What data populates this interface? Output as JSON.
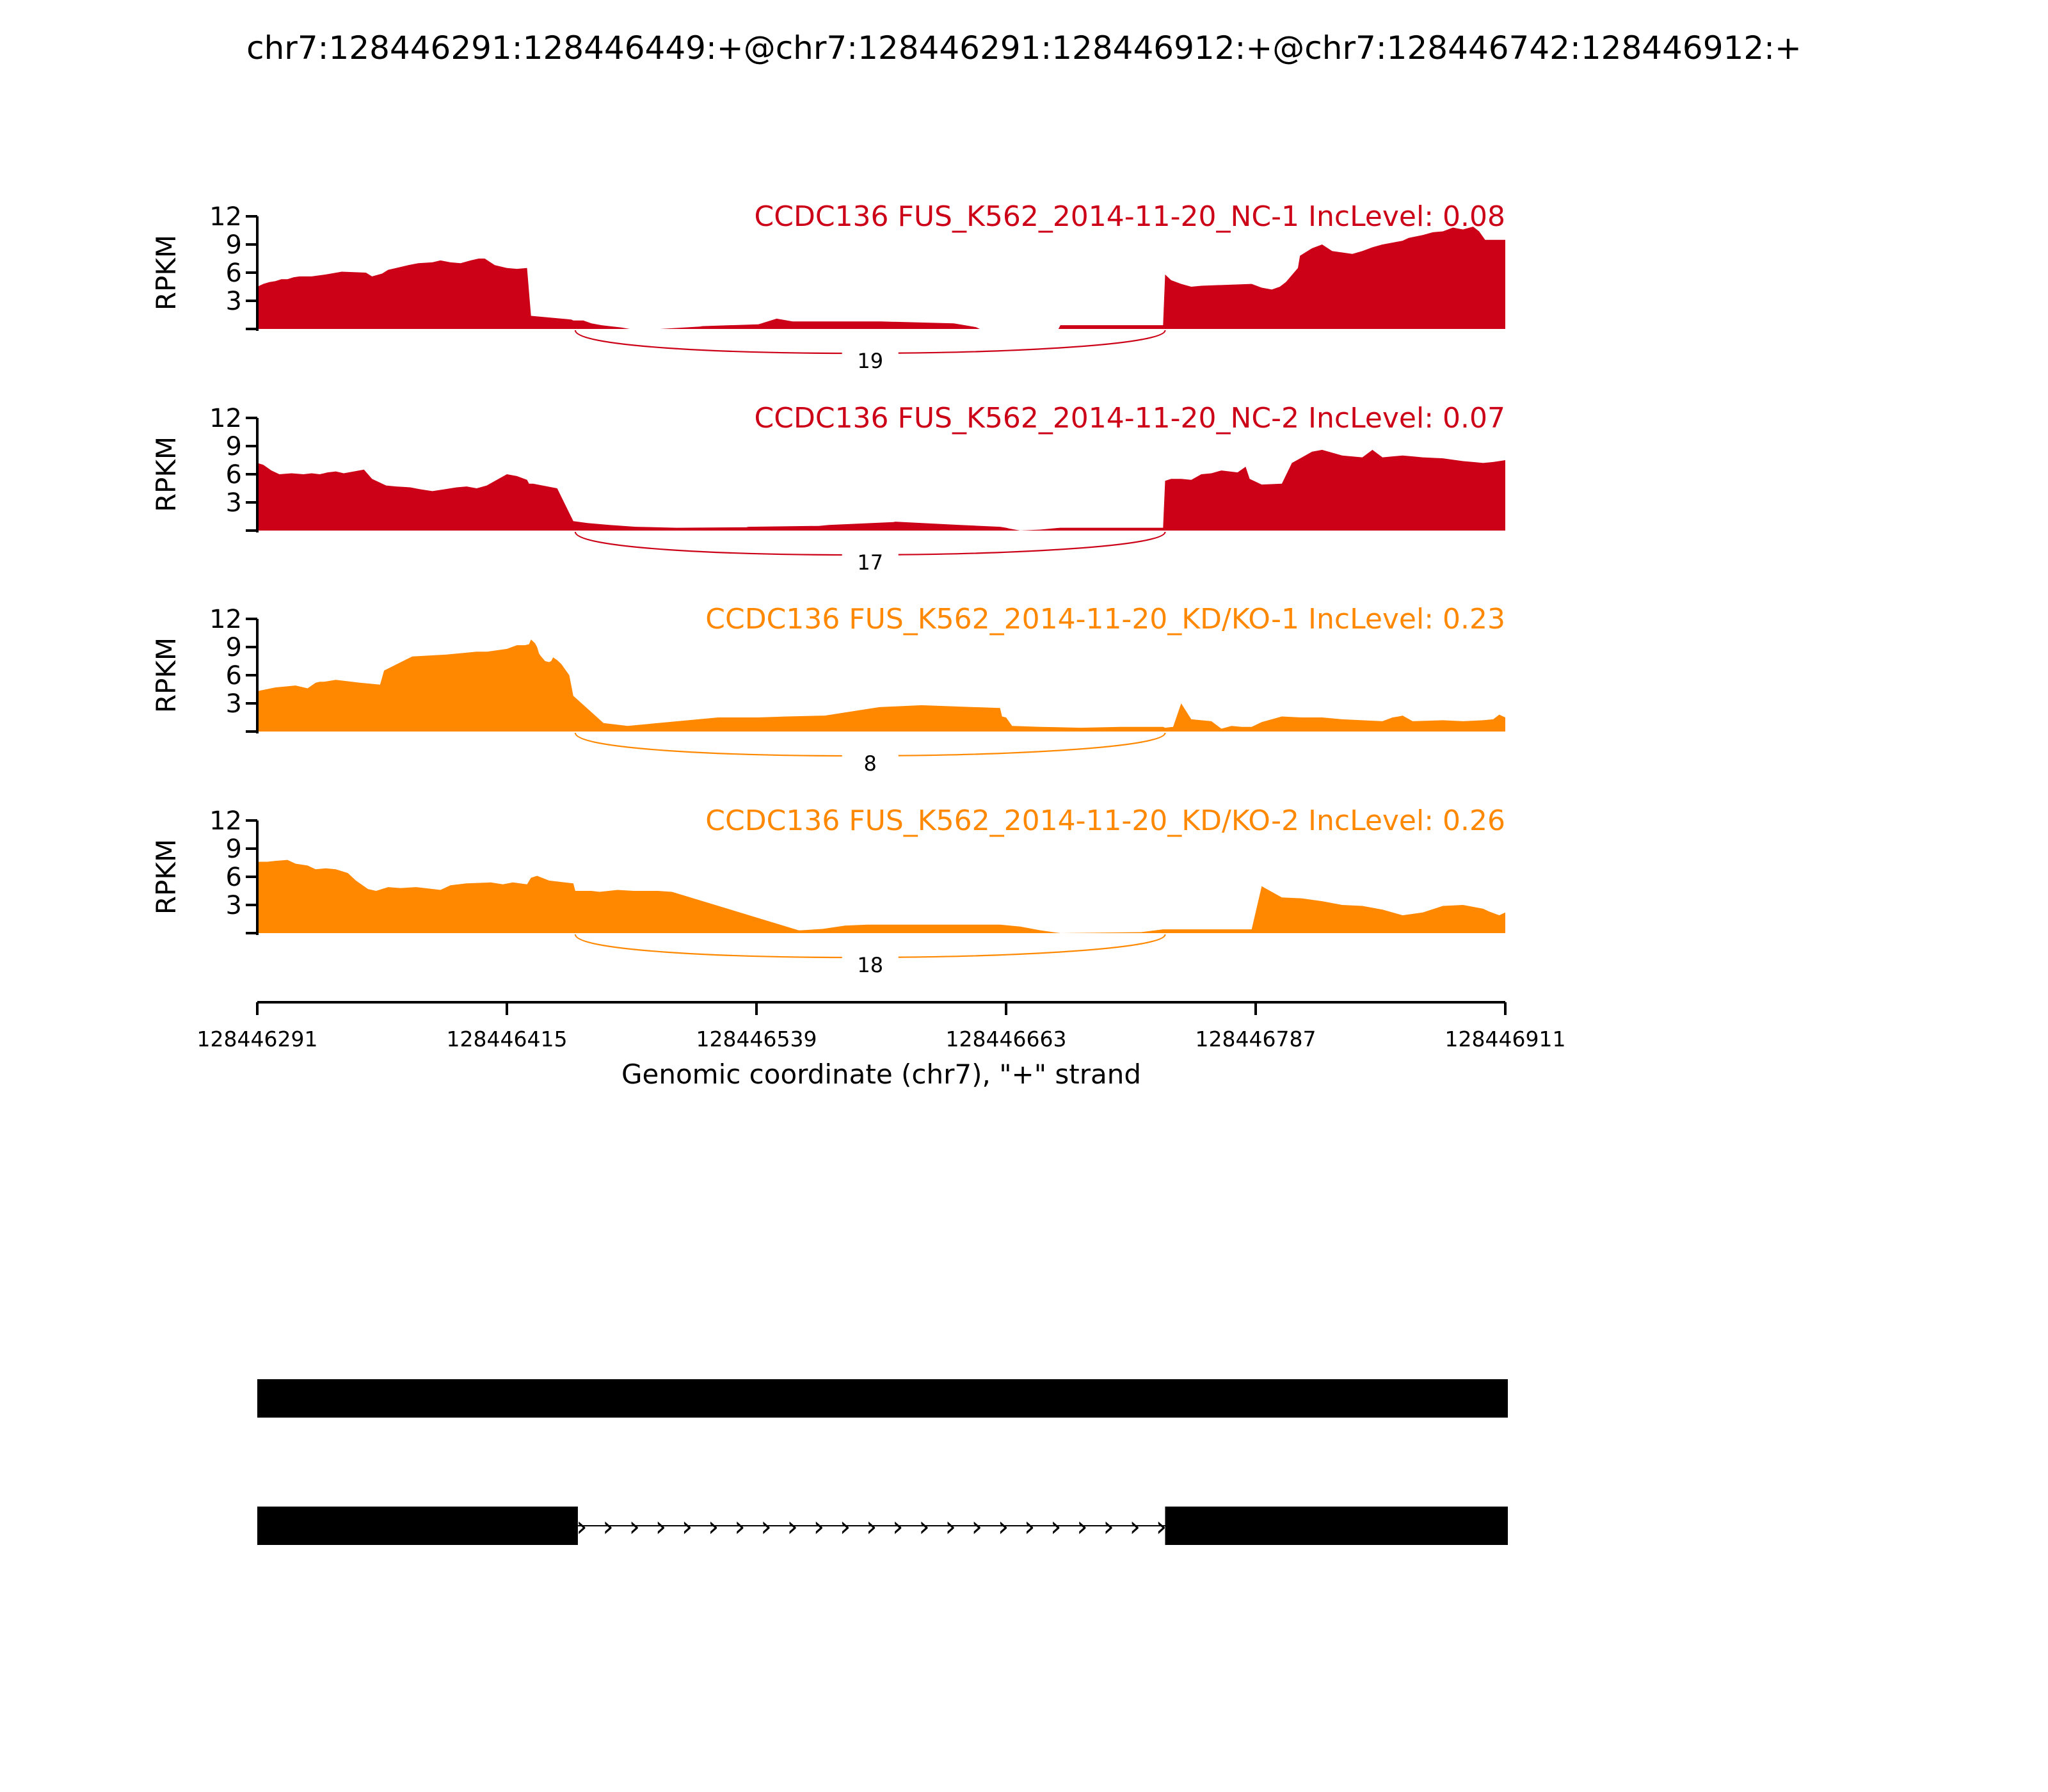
{
  "chart_data": {
    "type": "area",
    "title": "chr7:128446291:128446449:+@chr7:128446291:128446912:+@chr7:128446742:128446912:+",
    "ylabel": "RPKM",
    "xlabel": "Genomic coordinate (chr7), \"+\" strand",
    "xlim": [
      128446291,
      128446911
    ],
    "x_ticks": [
      "128446291",
      "128446415",
      "128446539",
      "128446663",
      "128446787",
      "128446911"
    ],
    "ylim": [
      0,
      12
    ],
    "y_ticks": [
      "3",
      "6",
      "9",
      "12"
    ],
    "colors": {
      "NC": "#cc0016",
      "KD": "#ff8800"
    },
    "panels": [
      {
        "label": "CCDC136 FUS_K562_2014-11-20_NC-1 IncLevel: 0.08",
        "color": "#cc0016",
        "junction_count": "19",
        "x": [
          128446291,
          128446294,
          128446297,
          128446300,
          128446303,
          128446306,
          128446309,
          128446312,
          128446318,
          128446325,
          128446333,
          128446345,
          128446348,
          128446353,
          128446356,
          128446360,
          128446366,
          128446371,
          128446378,
          128446382,
          128446387,
          128446392,
          128446397,
          128446401,
          128446404,
          128446409,
          128446415,
          128446420,
          128446425,
          128446427,
          128446447,
          128446448,
          128446453,
          128446457,
          128446462,
          128446466,
          128446472,
          128446476,
          128446481,
          128446487,
          128446491,
          128446511,
          128446512,
          128446540,
          128446549,
          128446557,
          128446584,
          128446601,
          128446637,
          128446648,
          128446650,
          128446663,
          128446669,
          128446689,
          128446690,
          128446740,
          128446741,
          128446742,
          128446745,
          128446750,
          128446755,
          128446760,
          128446785,
          128446790,
          128446795,
          128446799,
          128446802,
          128446808,
          128446809,
          128446812,
          128446815,
          128446820,
          128446825,
          128446835,
          128446840,
          128446845,
          128446850,
          128446860,
          128446863,
          128446870,
          128446875,
          128446880,
          128446885,
          128446890,
          128446895,
          128446898,
          128446901,
          128446905,
          128446911
        ],
        "y": [
          4.5,
          4.8,
          5.0,
          5.1,
          5.3,
          5.3,
          5.5,
          5.6,
          5.6,
          5.8,
          6.1,
          6.0,
          5.6,
          5.9,
          6.3,
          6.5,
          6.8,
          7.0,
          7.1,
          7.3,
          7.1,
          7.0,
          7.3,
          7.5,
          7.5,
          6.8,
          6.5,
          6.4,
          6.5,
          1.4,
          1.0,
          0.9,
          0.9,
          0.6,
          0.4,
          0.3,
          0.15,
          0.0,
          0.0,
          0.0,
          0.0,
          0.25,
          0.3,
          0.5,
          1.1,
          0.8,
          0.8,
          0.8,
          0.6,
          0.2,
          0.0,
          0.0,
          0.0,
          0.0,
          0.4,
          0.4,
          0.4,
          5.8,
          5.2,
          4.8,
          4.5,
          4.6,
          4.8,
          4.4,
          4.2,
          4.5,
          5.0,
          6.5,
          7.8,
          8.2,
          8.6,
          9.0,
          8.3,
          8.0,
          8.3,
          8.7,
          9.0,
          9.4,
          9.7,
          10.0,
          10.3,
          10.4,
          10.8,
          10.6,
          10.9,
          10.4,
          9.5,
          9.5,
          9.5
        ]
      },
      {
        "label": "CCDC136 FUS_K562_2014-11-20_NC-2 IncLevel: 0.07",
        "color": "#cc0016",
        "junction_count": "17",
        "x": [
          128446291,
          128446294,
          128446298,
          128446302,
          128446308,
          128446314,
          128446318,
          128446322,
          128446326,
          128446330,
          128446334,
          128446344,
          128446348,
          128446355,
          128446360,
          128446367,
          128446372,
          128446378,
          128446384,
          128446390,
          128446395,
          128446400,
          128446405,
          128446410,
          128446415,
          128446420,
          128446425,
          128446426,
          128446428,
          128446440,
          128446448,
          128446455,
          128446466,
          128446479,
          128446499,
          128446500,
          128446534,
          128446535,
          128446570,
          128446575,
          128446607,
          128446608,
          128446640,
          128446660,
          128446663,
          128446665,
          128446670,
          128446680,
          128446690,
          128446718,
          128446719,
          128446720,
          128446740,
          128446741,
          128446742,
          128446745,
          128446750,
          128446755,
          128446760,
          128446765,
          128446770,
          128446778,
          128446782,
          128446784,
          128446790,
          128446800,
          128446805,
          128446810,
          128446815,
          128446820,
          128446830,
          128446840,
          128446845,
          128446850,
          128446855,
          128446860,
          128446865,
          128446870,
          128446880,
          128446890,
          128446895,
          128446900,
          128446905,
          128446911
        ],
        "y": [
          7.2,
          7.0,
          6.4,
          6.0,
          6.1,
          6.0,
          6.1,
          6.0,
          6.2,
          6.3,
          6.1,
          6.5,
          5.5,
          4.8,
          4.7,
          4.6,
          4.4,
          4.2,
          4.4,
          4.6,
          4.7,
          4.5,
          4.8,
          5.4,
          6.0,
          5.8,
          5.4,
          5.0,
          5.0,
          4.5,
          1.0,
          0.8,
          0.6,
          0.4,
          0.3,
          0.3,
          0.35,
          0.4,
          0.5,
          0.6,
          0.9,
          0.95,
          0.6,
          0.4,
          0.3,
          0.2,
          0.0,
          0.1,
          0.3,
          0.3,
          0.3,
          0.3,
          0.3,
          0.3,
          5.3,
          5.5,
          5.5,
          5.4,
          6.0,
          6.1,
          6.4,
          6.2,
          6.8,
          5.5,
          4.9,
          5.0,
          7.2,
          7.8,
          8.4,
          8.6,
          8.0,
          7.8,
          8.6,
          7.8,
          7.9,
          8.0,
          7.9,
          7.8,
          7.7,
          7.4,
          7.3,
          7.2,
          7.3,
          7.5
        ]
      },
      {
        "label": "CCDC136 FUS_K562_2014-11-20_KD/KO-1 IncLevel: 0.23",
        "color": "#ff8800",
        "junction_count": "8",
        "x": [
          128446291,
          128446300,
          128446310,
          128446316,
          128446320,
          128446322,
          128446324,
          128446330,
          128446342,
          128446352,
          128446354,
          128446368,
          128446385,
          128446400,
          128446405,
          128446415,
          128446420,
          128446424,
          128446426,
          128446427,
          128446429,
          128446430,
          128446431,
          128446432,
          128446434,
          128446436,
          128446437,
          128446438,
          128446440,
          128446442,
          128446446,
          128446448,
          128446463,
          128446475,
          128446520,
          128446540,
          128446554,
          128446573,
          128446600,
          128446621,
          128446660,
          128446661,
          128446663,
          128446666,
          128446680,
          128446700,
          128446720,
          128446741,
          128446742,
          128446744,
          128446746,
          128446750,
          128446755,
          128446765,
          128446770,
          128446775,
          128446780,
          128446785,
          128446790,
          128446800,
          128446810,
          128446820,
          128446830,
          128446850,
          128446855,
          128446858,
          128446860,
          128446865,
          128446880,
          128446890,
          128446900,
          128446905,
          128446908,
          128446911
        ],
        "y": [
          4.3,
          4.7,
          4.9,
          4.6,
          5.2,
          5.3,
          5.3,
          5.5,
          5.2,
          5.0,
          6.5,
          8.0,
          8.2,
          8.5,
          8.5,
          8.8,
          9.2,
          9.2,
          9.3,
          9.8,
          9.4,
          9.0,
          8.3,
          8.0,
          7.5,
          7.4,
          7.5,
          7.9,
          7.6,
          7.2,
          6.0,
          3.8,
          0.9,
          0.6,
          1.5,
          1.5,
          1.6,
          1.7,
          2.6,
          2.8,
          2.5,
          1.6,
          1.5,
          0.6,
          0.5,
          0.4,
          0.5,
          0.5,
          0.4,
          0.45,
          0.5,
          3.0,
          1.3,
          1.1,
          0.3,
          0.6,
          0.5,
          0.5,
          1.0,
          1.6,
          1.5,
          1.5,
          1.3,
          1.1,
          1.5,
          1.6,
          1.7,
          1.1,
          1.2,
          1.1,
          1.2,
          1.3,
          1.8,
          1.5
        ]
      },
      {
        "label": "CCDC136 FUS_K562_2014-11-20_KD/KO-2 IncLevel: 0.26",
        "color": "#ff8800",
        "junction_count": "18",
        "x": [
          128446291,
          128446296,
          128446300,
          128446306,
          128446310,
          128446316,
          128446320,
          128446325,
          128446330,
          128446336,
          128446340,
          128446346,
          128446350,
          128446356,
          128446362,
          128446370,
          128446382,
          128446387,
          128446395,
          128446407,
          128446413,
          128446418,
          128446425,
          128446427,
          128446430,
          128446436,
          128446448,
          128446449,
          128446453,
          128446457,
          128446461,
          128446470,
          128446478,
          128446485,
          128446490,
          128446497,
          128446560,
          128446561,
          128446572,
          128446583,
          128446594,
          128446605,
          128446640,
          128446660,
          128446670,
          128446680,
          128446690,
          128446730,
          128446741,
          128446742,
          128446745,
          128446750,
          128446755,
          128446762,
          128446770,
          128446785,
          128446790,
          128446800,
          128446810,
          128446820,
          128446830,
          128446840,
          128446850,
          128446860,
          128446870,
          128446880,
          128446890,
          128446900,
          128446903,
          128446908,
          128446911
        ],
        "y": [
          7.6,
          7.6,
          7.7,
          7.8,
          7.4,
          7.2,
          6.8,
          6.9,
          6.8,
          6.4,
          5.6,
          4.7,
          4.5,
          4.9,
          4.8,
          4.9,
          4.6,
          5.1,
          5.3,
          5.4,
          5.2,
          5.4,
          5.2,
          5.9,
          6.1,
          5.6,
          5.3,
          4.5,
          4.5,
          4.5,
          4.4,
          4.6,
          4.5,
          4.5,
          4.5,
          4.4,
          0.3,
          0.3,
          0.45,
          0.8,
          0.9,
          0.9,
          0.9,
          0.9,
          0.7,
          0.3,
          0.0,
          0.1,
          0.4,
          0.4,
          0.4,
          0.4,
          0.4,
          0.4,
          0.4,
          0.4,
          5.0,
          3.8,
          3.7,
          3.4,
          3.0,
          2.9,
          2.5,
          1.9,
          2.2,
          2.9,
          3.0,
          2.6,
          2.3,
          1.9,
          2.2
        ]
      }
    ],
    "annotations": {
      "arrow_glyph": "›",
      "arrow_count": 23
    },
    "gene_models": [
      {
        "exons": [
          [
            128446291,
            128446911
          ]
        ]
      },
      {
        "exons": [
          [
            128446291,
            128446449
          ],
          [
            128446742,
            128446911
          ]
        ],
        "intron_arrows": true
      }
    ]
  }
}
